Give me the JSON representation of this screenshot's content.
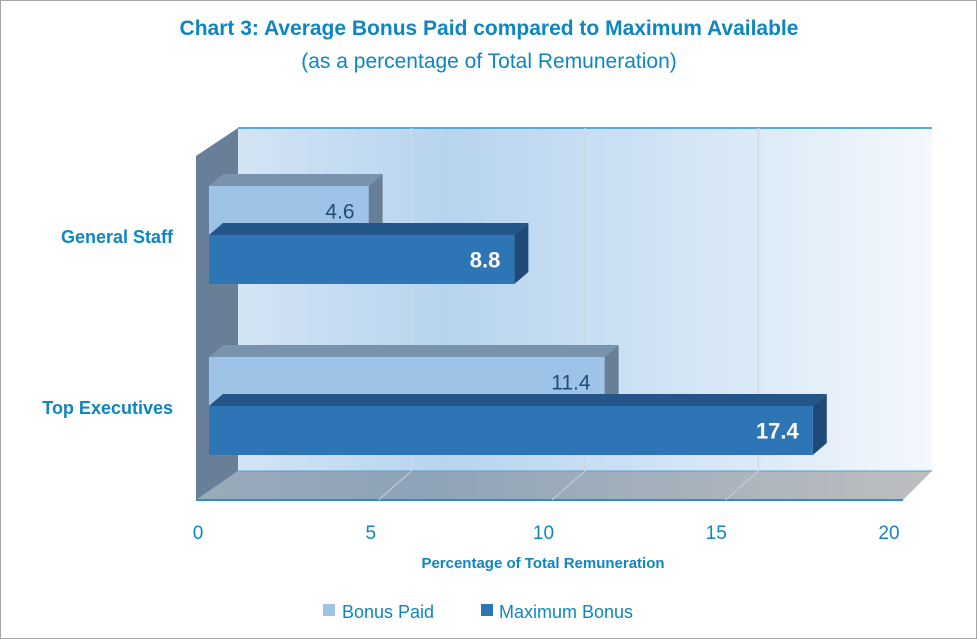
{
  "chart_data": {
    "type": "bar",
    "orientation": "horizontal",
    "title": "Chart 3: Average Bonus Paid compared to Maximum Available",
    "subtitle": "(as a percentage of Total Remuneration)",
    "xlabel": "Percentage of Total  Remuneration",
    "ylabel": "",
    "categories": [
      "General Staff",
      "Top Executives"
    ],
    "series": [
      {
        "name": "Bonus Paid",
        "values": [
          4.6,
          11.4
        ],
        "labels": [
          "4.6",
          "11.4"
        ],
        "color": "#9dc3e6"
      },
      {
        "name": "Maximum Bonus",
        "values": [
          8.8,
          17.4
        ],
        "labels": [
          "8.8",
          "17.4"
        ],
        "color": "#2e75b6"
      }
    ],
    "xlim": [
      0,
      20
    ],
    "xticks": [
      "0",
      "5",
      "10",
      "15",
      "20"
    ],
    "xtick_values": [
      0,
      5,
      10,
      15,
      20
    ],
    "grid": true,
    "legend": "bottom",
    "text_color": "#0e86bf"
  }
}
